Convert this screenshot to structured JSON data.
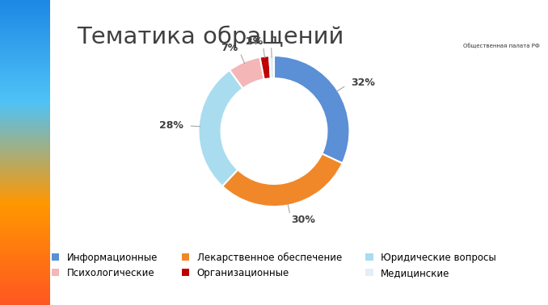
{
  "chart_data": {
    "type": "pie",
    "title": "Тематика обращений",
    "categories": [
      "Информационные",
      "Лекарственное обеспечение",
      "Юридические вопросы",
      "Психологические",
      "Организационные",
      "Медицинские"
    ],
    "values": [
      32,
      30,
      28,
      7,
      2,
      1
    ],
    "value_labels": [
      "32%",
      "30%",
      "28%",
      "7%",
      "2%",
      "1"
    ],
    "colors": [
      "#5b8fd6",
      "#f0882a",
      "#a9dcef",
      "#f4b6b6",
      "#c00000",
      "#e3eef6"
    ],
    "data_labels": true,
    "legend": "lower center",
    "annotations": [
      "Общественная палата РФ"
    ]
  }
}
